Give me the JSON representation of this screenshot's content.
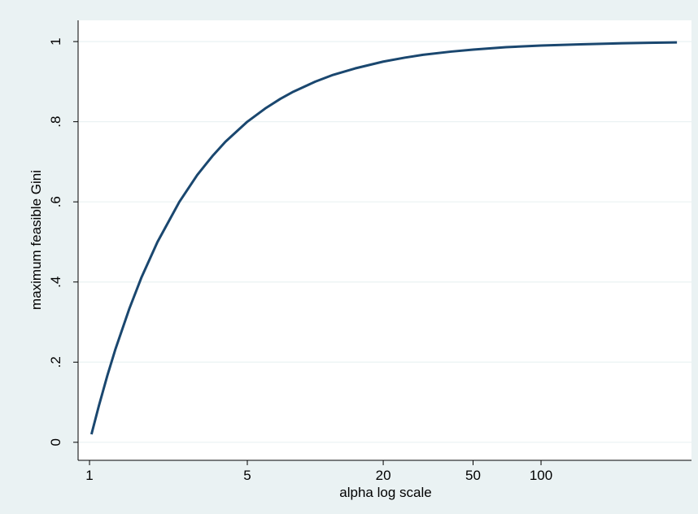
{
  "chart_data": {
    "type": "line",
    "x_label": "alpha log scale",
    "y_label": "maximum feasible Gini",
    "x": [
      1.02,
      1.1,
      1.2,
      1.3,
      1.5,
      1.7,
      2,
      2.5,
      3,
      3.5,
      4,
      5,
      6,
      7,
      8,
      10,
      12,
      15,
      20,
      25,
      30,
      40,
      50,
      70,
      100,
      150,
      200,
      300,
      400
    ],
    "values": [
      0.02,
      0.091,
      0.167,
      0.231,
      0.333,
      0.412,
      0.5,
      0.6,
      0.667,
      0.714,
      0.75,
      0.8,
      0.833,
      0.857,
      0.875,
      0.9,
      0.917,
      0.933,
      0.95,
      0.96,
      0.967,
      0.975,
      0.98,
      0.986,
      0.99,
      0.993,
      0.995,
      0.997,
      0.998
    ],
    "color": "#1a476f",
    "xscale": "log",
    "xlim": [
      0.89,
      464
    ],
    "xticks": [
      1,
      5,
      20,
      50,
      100
    ],
    "ylim": [
      -0.045,
      1.053
    ],
    "yticks": [
      0,
      {
        "value": 0.2,
        "label": ".2"
      },
      {
        "value": 0.4,
        "label": ".4"
      },
      {
        "value": 0.6,
        "label": ".6"
      },
      {
        "value": 0.8,
        "label": ".8"
      },
      1
    ],
    "grid": true
  }
}
